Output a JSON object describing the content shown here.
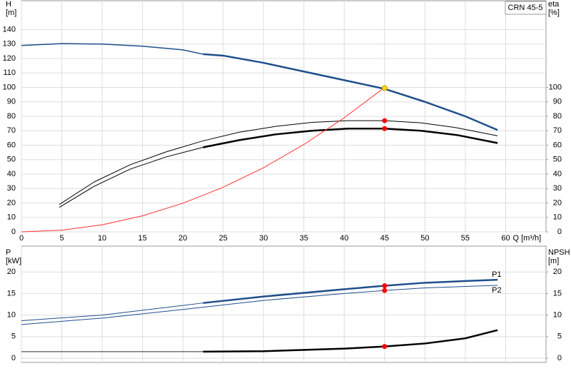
{
  "chart_data": [
    {
      "type": "line",
      "title": "CRN 45-5",
      "ylabel": "H",
      "yunit": "[m]",
      "y2label": "eta",
      "y2unit": "[%]",
      "xlabel": "Q [m³/h]",
      "xlim": [
        0,
        65
      ],
      "xticks": [
        0,
        5,
        10,
        15,
        20,
        25,
        30,
        35,
        40,
        45,
        50,
        55,
        60
      ],
      "ylim": [
        0,
        160
      ],
      "yticks": [
        0,
        10,
        20,
        30,
        40,
        50,
        60,
        70,
        80,
        90,
        100,
        110,
        120,
        130,
        140
      ],
      "y2lim": [
        0,
        160
      ],
      "y2ticks": [
        0,
        10,
        20,
        30,
        40,
        50,
        60,
        70,
        80,
        90,
        100
      ],
      "grid": true,
      "show_xtick_labels": true,
      "series": [
        {
          "color": "#1f4e8c",
          "width": 1.5,
          "x": [
            0,
            5,
            10,
            15,
            20,
            22.5
          ],
          "values": [
            129,
            130.3,
            130,
            128.5,
            126,
            123
          ]
        },
        {
          "color": "#1f4e8c",
          "width": 2.5,
          "x": [
            22.5,
            25,
            30,
            35,
            40,
            45,
            50,
            55,
            59
          ],
          "values": [
            123,
            122,
            117,
            111,
            105,
            99,
            90,
            80,
            70.5
          ]
        },
        {
          "color": "#000000",
          "width": 1,
          "axis": "y2",
          "x": [
            4.7,
            9,
            13.5,
            18,
            22.5,
            27,
            31.5,
            36,
            40.5,
            45,
            49.5,
            54,
            59
          ],
          "values": [
            19,
            34.5,
            46.5,
            55.5,
            63,
            69,
            73,
            75.8,
            77,
            77,
            75.5,
            72,
            66.5
          ]
        },
        {
          "color": "#000000",
          "width": 1,
          "axis": "y2",
          "x": [
            4.7,
            9,
            13.5,
            18,
            22.5
          ],
          "values": [
            17,
            31.5,
            43.5,
            52,
            58.5
          ]
        },
        {
          "color": "#000000",
          "width": 2.5,
          "axis": "y2",
          "x": [
            22.5,
            27,
            31.5,
            36,
            40.5,
            45,
            49.5,
            54,
            59
          ],
          "values": [
            58.5,
            63.5,
            67.5,
            70,
            71.5,
            71.5,
            70,
            67,
            61.5
          ]
        },
        {
          "color": "#ff3030",
          "width": 1,
          "x": [
            0,
            5,
            10,
            15,
            20,
            25,
            30,
            35,
            40,
            45
          ],
          "values": [
            0,
            1.2,
            4.9,
            11.1,
            19.8,
            30.9,
            44.4,
            60.5,
            79,
            100
          ]
        },
        {
          "type": "scatter",
          "color": "#ff0000",
          "axis": "y2",
          "x": [
            45,
            45
          ],
          "values": [
            77,
            71.5
          ]
        },
        {
          "type": "scatter",
          "color": "#ffd700",
          "x": [
            45
          ],
          "values": [
            99.5
          ]
        }
      ]
    },
    {
      "type": "line",
      "ylabel": "P",
      "yunit": "[kW]",
      "y2label": "NPSH",
      "y2unit": "[m]",
      "xlim": [
        0,
        65
      ],
      "xticks": [
        0,
        5,
        10,
        15,
        20,
        25,
        30,
        35,
        40,
        45,
        50,
        55,
        60
      ],
      "ylim": [
        -1,
        26
      ],
      "yticks": [
        0,
        5,
        10,
        15,
        20
      ],
      "y2lim": [
        -1,
        26
      ],
      "y2ticks": [
        0,
        5,
        10,
        15,
        20
      ],
      "grid": true,
      "show_xtick_labels": false,
      "series": [
        {
          "color": "#1f4e8c",
          "width": 1,
          "x": [
            0,
            10,
            22.5
          ],
          "values": [
            8.7,
            10,
            12.8
          ]
        },
        {
          "name": "P1",
          "color": "#1f4e8c",
          "width": 2.5,
          "x": [
            22.5,
            30,
            40,
            45,
            50,
            55,
            59
          ],
          "values": [
            12.8,
            14.3,
            16,
            16.8,
            17.5,
            17.9,
            18.2
          ]
        },
        {
          "name": "P2",
          "color": "#1f4e8c",
          "width": 1,
          "x": [
            0,
            10,
            20,
            30,
            40,
            45,
            50,
            59
          ],
          "values": [
            7.8,
            9.3,
            11.3,
            13.4,
            15,
            15.7,
            16.3,
            16.9
          ]
        },
        {
          "color": "#333333",
          "width": 1,
          "axis": "y2",
          "x": [
            0,
            22.5
          ],
          "values": [
            1.5,
            1.5
          ]
        },
        {
          "color": "#000000",
          "width": 2.5,
          "axis": "y2",
          "x": [
            22.5,
            30,
            40,
            45,
            50,
            55,
            59
          ],
          "values": [
            1.5,
            1.6,
            2.2,
            2.7,
            3.4,
            4.6,
            6.5
          ]
        },
        {
          "type": "scatter",
          "color": "#ff0000",
          "x": [
            45,
            45
          ],
          "values": [
            16.8,
            15.7
          ]
        },
        {
          "type": "scatter",
          "color": "#ff0000",
          "axis": "y2",
          "x": [
            45
          ],
          "values": [
            2.7
          ]
        }
      ]
    }
  ]
}
